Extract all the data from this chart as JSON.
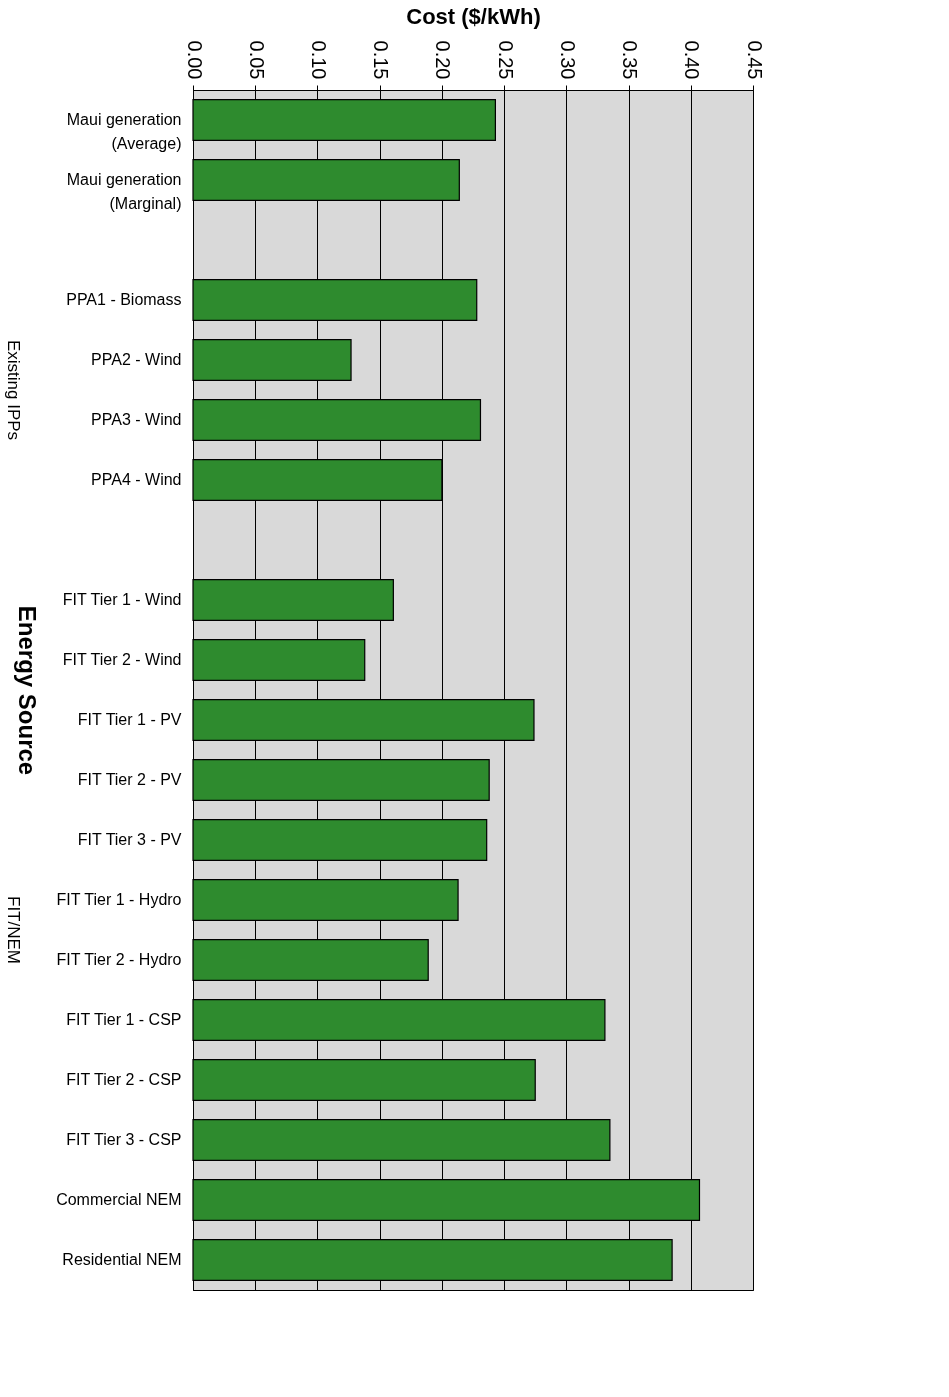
{
  "chart_data": {
    "type": "bar",
    "orientation": "horizontal",
    "xlabel": "Cost ($/kWh)",
    "ylabel": "Energy Source",
    "categories": [
      "Maui generation\n(Average)",
      "Maui generation\n(Marginal)",
      null,
      "PPA1 - Biomass",
      "PPA2 - Wind",
      "PPA3 - Wind",
      "PPA4 - Wind",
      null,
      "FIT Tier 1 - Wind",
      "FIT Tier 2 - Wind",
      "FIT Tier 1 - PV",
      "FIT Tier 2 - PV",
      "FIT Tier 3 - PV",
      "FIT Tier 1 - Hydro",
      "FIT Tier 2 - Hydro",
      "FIT Tier 1 - CSP",
      "FIT Tier 2 - CSP",
      "FIT Tier 3 - CSP",
      "Commercial NEM",
      "Residential NEM"
    ],
    "values": [
      0.243,
      0.214,
      null,
      0.228,
      0.127,
      0.231,
      0.2,
      null,
      0.161,
      0.138,
      0.274,
      0.238,
      0.236,
      0.213,
      0.189,
      0.331,
      0.275,
      0.335,
      0.407,
      0.385
    ],
    "color": "#2e8b2e",
    "xlim": [
      0,
      0.45
    ],
    "xticks": [
      {
        "value": 0,
        "label": "0.00"
      },
      {
        "value": 0.05,
        "label": "0.05"
      },
      {
        "value": 0.1,
        "label": "0.10"
      },
      {
        "value": 0.15,
        "label": "0.15"
      },
      {
        "value": 0.2,
        "label": "0.20"
      },
      {
        "value": 0.25,
        "label": "0.25"
      },
      {
        "value": 0.3,
        "label": "0.30"
      },
      {
        "value": 0.35,
        "label": "0.35"
      },
      {
        "value": 0.4,
        "label": "0.40"
      },
      {
        "value": 0.45,
        "label": "0.45"
      }
    ],
    "grid": "x",
    "annotations": [
      "Existing IPPs",
      "FIT/NEM"
    ]
  }
}
